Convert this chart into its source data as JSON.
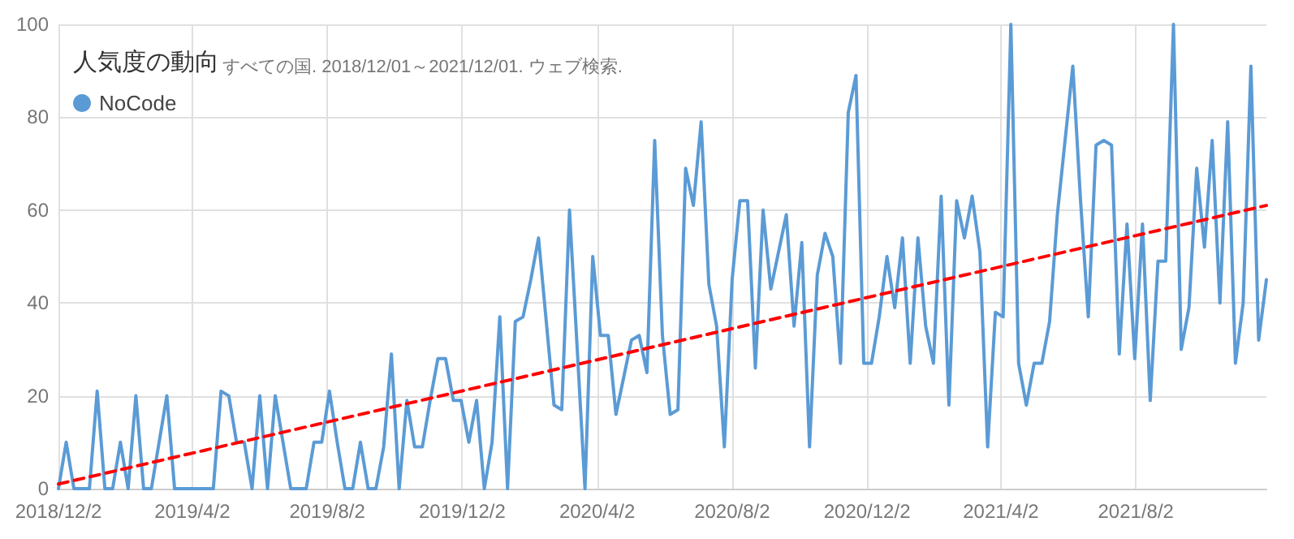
{
  "chart_data": {
    "type": "line",
    "title": "人気度の動向",
    "subtitle": "すべての国. 2018/12/01～2021/12/01. ウェブ検索.",
    "x": [
      "2018-12-02",
      "2018-12-09",
      "2018-12-16",
      "2018-12-23",
      "2018-12-30",
      "2019-01-06",
      "2019-01-13",
      "2019-01-20",
      "2019-01-27",
      "2019-02-03",
      "2019-02-10",
      "2019-02-17",
      "2019-02-24",
      "2019-03-03",
      "2019-03-10",
      "2019-03-17",
      "2019-03-24",
      "2019-03-31",
      "2019-04-07",
      "2019-04-14",
      "2019-04-21",
      "2019-04-28",
      "2019-05-05",
      "2019-05-12",
      "2019-05-19",
      "2019-05-26",
      "2019-06-02",
      "2019-06-09",
      "2019-06-16",
      "2019-06-23",
      "2019-06-30",
      "2019-07-07",
      "2019-07-14",
      "2019-07-21",
      "2019-07-28",
      "2019-08-04",
      "2019-08-11",
      "2019-08-18",
      "2019-08-25",
      "2019-09-01",
      "2019-09-08",
      "2019-09-15",
      "2019-09-22",
      "2019-09-29",
      "2019-10-06",
      "2019-10-13",
      "2019-10-20",
      "2019-10-27",
      "2019-11-03",
      "2019-11-10",
      "2019-11-17",
      "2019-11-24",
      "2019-12-01",
      "2019-12-08",
      "2019-12-15",
      "2019-12-22",
      "2019-12-29",
      "2020-01-05",
      "2020-01-12",
      "2020-01-19",
      "2020-01-26",
      "2020-02-02",
      "2020-02-09",
      "2020-02-16",
      "2020-02-23",
      "2020-03-01",
      "2020-03-08",
      "2020-03-15",
      "2020-03-22",
      "2020-03-29",
      "2020-04-05",
      "2020-04-12",
      "2020-04-19",
      "2020-04-26",
      "2020-05-03",
      "2020-05-10",
      "2020-05-17",
      "2020-05-24",
      "2020-05-31",
      "2020-06-07",
      "2020-06-14",
      "2020-06-21",
      "2020-06-28",
      "2020-07-05",
      "2020-07-12",
      "2020-07-19",
      "2020-07-26",
      "2020-08-02",
      "2020-08-09",
      "2020-08-16",
      "2020-08-23",
      "2020-08-30",
      "2020-09-06",
      "2020-09-13",
      "2020-09-20",
      "2020-09-27",
      "2020-10-04",
      "2020-10-11",
      "2020-10-18",
      "2020-10-25",
      "2020-11-01",
      "2020-11-08",
      "2020-11-15",
      "2020-11-22",
      "2020-11-29",
      "2020-12-06",
      "2020-12-13",
      "2020-12-20",
      "2020-12-27",
      "2021-01-03",
      "2021-01-10",
      "2021-01-17",
      "2021-01-24",
      "2021-01-31",
      "2021-02-07",
      "2021-02-14",
      "2021-02-21",
      "2021-02-28",
      "2021-03-07",
      "2021-03-14",
      "2021-03-21",
      "2021-03-28",
      "2021-04-04",
      "2021-04-11",
      "2021-04-18",
      "2021-04-25",
      "2021-05-02",
      "2021-05-09",
      "2021-05-16",
      "2021-05-23",
      "2021-05-30",
      "2021-06-06",
      "2021-06-13",
      "2021-06-20",
      "2021-06-27",
      "2021-07-04",
      "2021-07-11",
      "2021-07-18",
      "2021-07-25",
      "2021-08-01",
      "2021-08-08",
      "2021-08-15",
      "2021-08-22",
      "2021-08-29",
      "2021-09-05",
      "2021-09-12",
      "2021-09-19",
      "2021-09-26",
      "2021-10-03",
      "2021-10-10",
      "2021-10-17",
      "2021-10-24",
      "2021-10-31",
      "2021-11-07",
      "2021-11-14",
      "2021-11-21",
      "2021-11-28"
    ],
    "series": [
      {
        "name": "NoCode",
        "color": "#5b9bd5",
        "values": [
          0,
          10,
          0,
          0,
          0,
          21,
          0,
          0,
          10,
          0,
          20,
          0,
          0,
          10,
          20,
          0,
          0,
          0,
          0,
          0,
          0,
          21,
          20,
          10,
          10,
          0,
          20,
          0,
          20,
          10,
          0,
          0,
          0,
          10,
          10,
          21,
          10,
          0,
          0,
          10,
          0,
          0,
          9,
          29,
          0,
          19,
          9,
          9,
          19,
          28,
          28,
          19,
          19,
          10,
          19,
          0,
          10,
          37,
          0,
          36,
          37,
          45,
          54,
          36,
          18,
          17,
          60,
          30,
          0,
          50,
          33,
          33,
          16,
          24,
          32,
          33,
          25,
          75,
          33,
          16,
          17,
          69,
          61,
          79,
          44,
          35,
          9,
          45,
          62,
          62,
          26,
          60,
          43,
          51,
          59,
          35,
          53,
          9,
          46,
          55,
          50,
          27,
          81,
          89,
          27,
          27,
          37,
          50,
          39,
          54,
          27,
          54,
          35,
          27,
          63,
          18,
          62,
          54,
          63,
          51,
          9,
          38,
          37,
          100,
          27,
          18,
          27,
          27,
          36,
          59,
          75,
          91,
          62,
          37,
          74,
          75,
          74,
          29,
          57,
          28,
          57,
          19,
          49,
          49,
          100,
          30,
          39,
          69,
          52,
          75,
          40,
          79,
          27,
          40,
          91,
          32,
          45
        ]
      },
      {
        "type": "line",
        "color": "#ff0000",
        "line_style": "dashed",
        "x": [
          "2018-12-02",
          "2021-11-28"
        ],
        "values": [
          1,
          61
        ]
      }
    ],
    "xlim": [
      "2018-12-02",
      "2021-11-28"
    ],
    "xticks": [
      {
        "value": "2018-12-02",
        "label": "2018/12/2"
      },
      {
        "value": "2019-04-02",
        "label": "2019/4/2"
      },
      {
        "value": "2019-08-02",
        "label": "2019/8/2"
      },
      {
        "value": "2019-12-02",
        "label": "2019/12/2"
      },
      {
        "value": "2020-04-02",
        "label": "2020/4/2"
      },
      {
        "value": "2020-08-02",
        "label": "2020/8/2"
      },
      {
        "value": "2020-12-02",
        "label": "2020/12/2"
      },
      {
        "value": "2021-04-02",
        "label": "2021/4/2"
      },
      {
        "value": "2021-08-02",
        "label": "2021/8/2"
      }
    ],
    "ylim": [
      0,
      100
    ],
    "yticks": [
      0,
      20,
      40,
      60,
      80,
      100
    ],
    "grid": true,
    "legend": "top left",
    "marker": "none",
    "line_style": "solid"
  }
}
